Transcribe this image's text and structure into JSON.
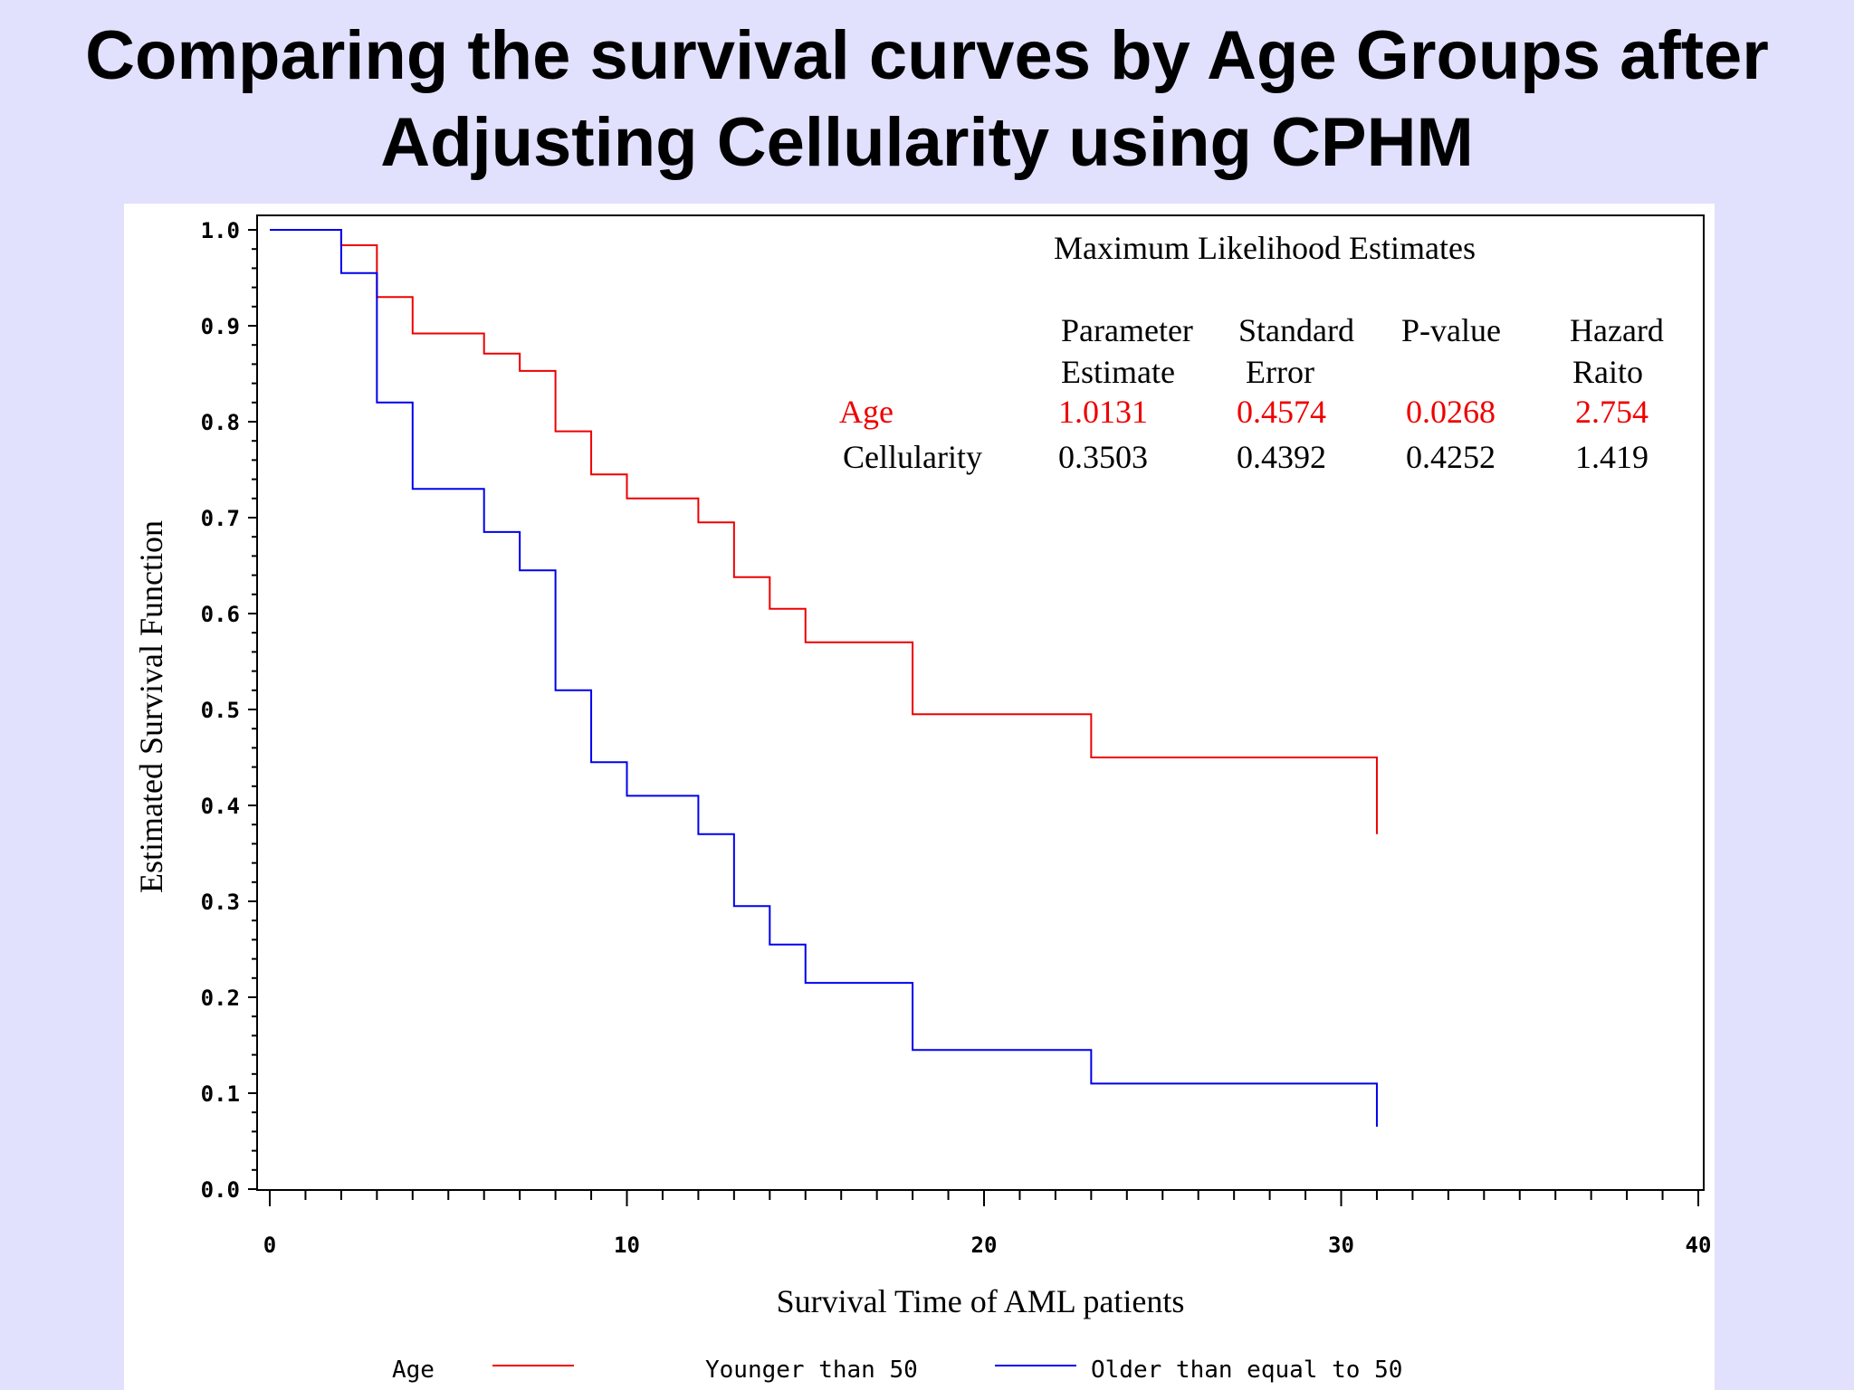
{
  "title": {
    "line1": "Comparing the survival curves by Age Groups after",
    "line2": "Adjusting Cellularity using CPHM"
  },
  "colors": {
    "background": "#e1e0fd",
    "group1": "#ee0000",
    "group2": "#0000ee"
  },
  "estimates_table": {
    "title": "Maximum Likelihood Estimates",
    "headers": [
      [
        "Parameter",
        "Estimate"
      ],
      [
        "Standard",
        "Error"
      ],
      [
        "P-value",
        ""
      ],
      [
        "Hazard",
        "Raito"
      ]
    ],
    "rows": [
      {
        "label": "Age",
        "values": [
          "1.0131",
          "0.4574",
          "0.0268",
          "2.754"
        ],
        "highlight": true
      },
      {
        "label": "Cellularity",
        "values": [
          "0.3503",
          "0.4392",
          "0.4252",
          "1.419"
        ],
        "highlight": false
      }
    ]
  },
  "chart_data": {
    "type": "line",
    "step": true,
    "xlabel": "Survival Time of AML patients",
    "ylabel": "Estimated Survival Function",
    "xlim": [
      0,
      40
    ],
    "ylim": [
      0,
      1
    ],
    "xticks": [
      "0",
      "10",
      "20",
      "30",
      "40"
    ],
    "yticks": [
      "0.0",
      "0.1",
      "0.2",
      "0.3",
      "0.4",
      "0.5",
      "0.6",
      "0.7",
      "0.8",
      "0.9",
      "1.0"
    ],
    "legend": {
      "title": "Age",
      "placement": "bottom"
    },
    "series": [
      {
        "name": "Younger than 50",
        "color": "#ee0000",
        "x": [
          0,
          2,
          3,
          4,
          6,
          7,
          8,
          9,
          10,
          12,
          13,
          14,
          15,
          18,
          23,
          31
        ],
        "y": [
          1.0,
          0.984,
          0.93,
          0.892,
          0.871,
          0.853,
          0.79,
          0.745,
          0.72,
          0.695,
          0.638,
          0.605,
          0.57,
          0.495,
          0.45,
          0.37
        ]
      },
      {
        "name": "Older than equal to 50",
        "color": "#0000ee",
        "x": [
          0,
          2,
          3,
          4,
          6,
          7,
          8,
          9,
          10,
          12,
          13,
          14,
          15,
          18,
          23,
          31
        ],
        "y": [
          1.0,
          0.955,
          0.82,
          0.73,
          0.685,
          0.645,
          0.52,
          0.445,
          0.41,
          0.37,
          0.295,
          0.255,
          0.215,
          0.145,
          0.11,
          0.065
        ]
      }
    ]
  }
}
